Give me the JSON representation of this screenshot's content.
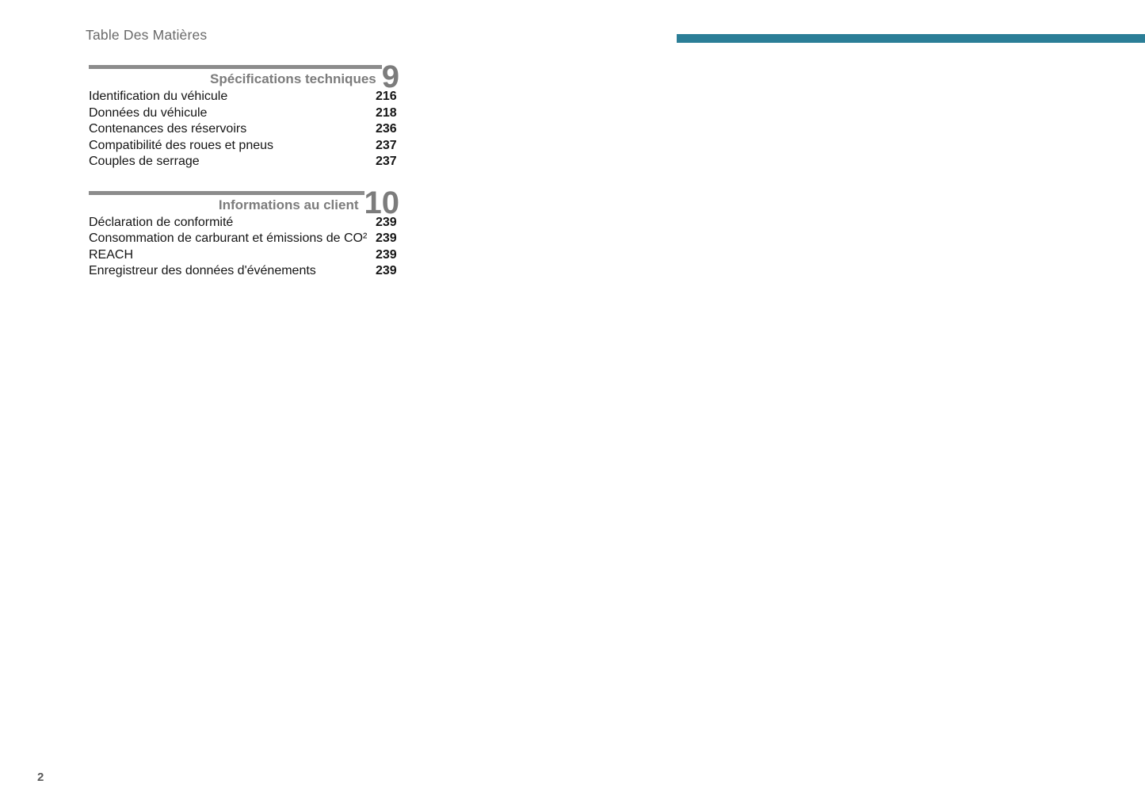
{
  "page": {
    "header_title": "Table Des Matières",
    "page_number": "2"
  },
  "accent": {
    "teal_bar_color": "#2b7e97"
  },
  "sections": [
    {
      "number": "9",
      "title": "Spécifications techniques",
      "items": [
        {
          "label": "Identification du véhicule",
          "page": "216"
        },
        {
          "label": "Données du véhicule",
          "page": "218"
        },
        {
          "label": "Contenances des réservoirs",
          "page": "236"
        },
        {
          "label": "Compatibilité des roues et pneus",
          "page": "237"
        },
        {
          "label": "Couples de serrage",
          "page": "237"
        }
      ]
    },
    {
      "number": "10",
      "title": "Informations au client",
      "items": [
        {
          "label": "Déclaration de conformité",
          "page": "239"
        },
        {
          "label": "Consommation de carburant et émissions de CO²",
          "page": "239"
        },
        {
          "label": "REACH",
          "page": "239"
        },
        {
          "label": "Enregistreur des données d'événements",
          "page": "239"
        }
      ]
    }
  ]
}
